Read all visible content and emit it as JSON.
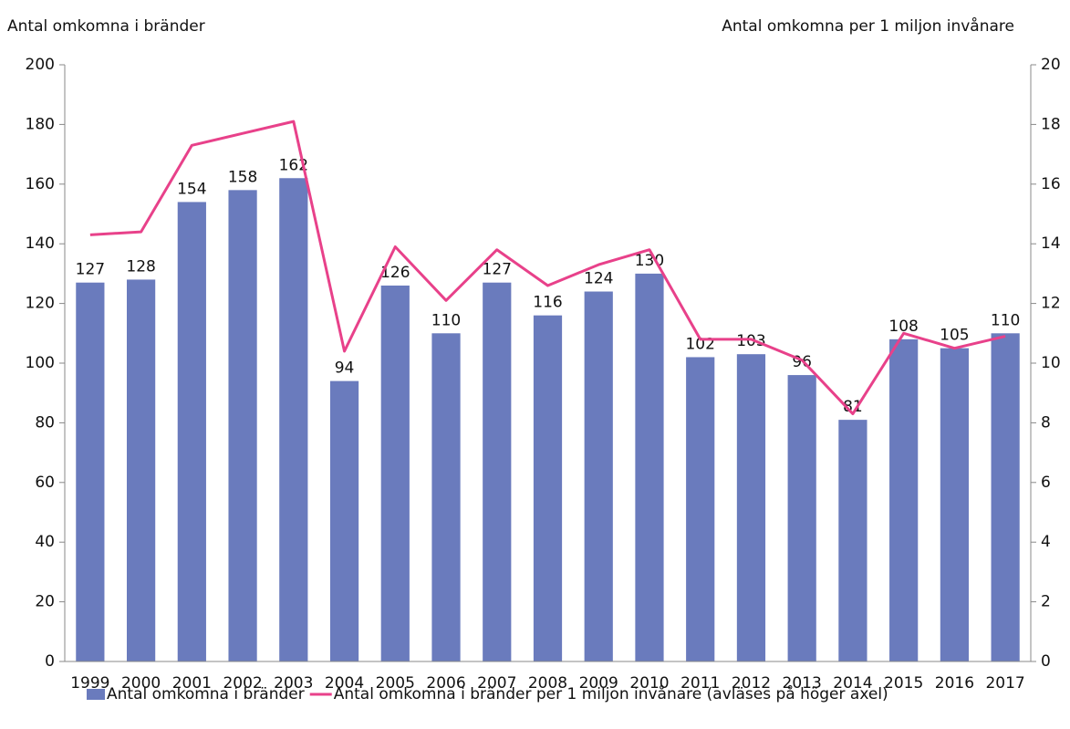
{
  "chart_data": {
    "type": "bar",
    "y_label": "Antal omkomna i bränder",
    "y2_label": "Antal omkomna per 1 miljon invånare",
    "categories": [
      "1999",
      "2000",
      "2001",
      "2002",
      "2003",
      "2004",
      "2005",
      "2006",
      "2007",
      "2008",
      "2009",
      "2010",
      "2011",
      "2012",
      "2013",
      "2014",
      "2015",
      "2016",
      "2017"
    ],
    "series": [
      {
        "name": "Antal omkomna i bränder",
        "type": "bar",
        "color": "#6a7bbd",
        "values": [
          127,
          128,
          154,
          158,
          162,
          94,
          126,
          110,
          127,
          116,
          124,
          130,
          102,
          103,
          96,
          81,
          108,
          105,
          110
        ]
      },
      {
        "name": "Antal omkomna i bränder per 1 miljon invånare (avläses på höger axel)",
        "type": "line",
        "axis": "y2",
        "color": "#e8418a",
        "values": [
          14.3,
          14.4,
          17.3,
          17.7,
          18.1,
          10.4,
          13.9,
          12.1,
          13.8,
          12.6,
          13.3,
          13.8,
          10.8,
          10.8,
          10.1,
          8.3,
          11.0,
          10.5,
          10.9
        ]
      }
    ],
    "ylim": [
      0,
      200
    ],
    "yticks": [
      0,
      20,
      40,
      60,
      80,
      100,
      120,
      140,
      160,
      180,
      200
    ],
    "y2lim": [
      0,
      20
    ],
    "y2ticks": [
      0,
      2,
      4,
      6,
      8,
      10,
      12,
      14,
      16,
      18,
      20
    ],
    "legend": "bottom"
  }
}
